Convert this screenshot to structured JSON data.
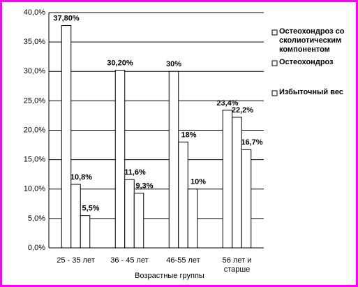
{
  "chart_data": {
    "type": "bar",
    "x_label": "Возрастные группы",
    "categories": [
      "25 - 35 лет",
      "36 - 45 лет",
      "46-55 лет",
      "56 лет и старше"
    ],
    "series": [
      {
        "name": "Остеохондроз со сколиотическим компонентом",
        "color": "#ffffff",
        "values": [
          37.8,
          30.2,
          30,
          23.4
        ],
        "value_labels": [
          "37,80%",
          "30,20%",
          "30%",
          "23,4%"
        ]
      },
      {
        "name": "Остеохондроз",
        "color": "#ffffff",
        "values": [
          10.8,
          11.6,
          18,
          22.2
        ],
        "value_labels": [
          "10,8%",
          "11,6%",
          "18%",
          "22,2%"
        ]
      },
      {
        "name": "Избыточный вес",
        "color": "#ffffff",
        "values": [
          5.5,
          9.3,
          10,
          16.7
        ],
        "value_labels": [
          "5,5%",
          "9,3%",
          "10%",
          "16,7%"
        ]
      }
    ],
    "ylim": [
      0,
      40
    ],
    "yticks": [
      {
        "value": 0,
        "label": "0,0%"
      },
      {
        "value": 5,
        "label": "5,0%"
      },
      {
        "value": 10,
        "label": "10,0%"
      },
      {
        "value": 15,
        "label": "15,0%"
      },
      {
        "value": 20,
        "label": "20,0%"
      },
      {
        "value": 25,
        "label": "25,0%"
      },
      {
        "value": 30,
        "label": "30,0%"
      },
      {
        "value": 35,
        "label": "35,0%"
      },
      {
        "value": 40,
        "label": "40,0%"
      }
    ],
    "grid": true
  }
}
